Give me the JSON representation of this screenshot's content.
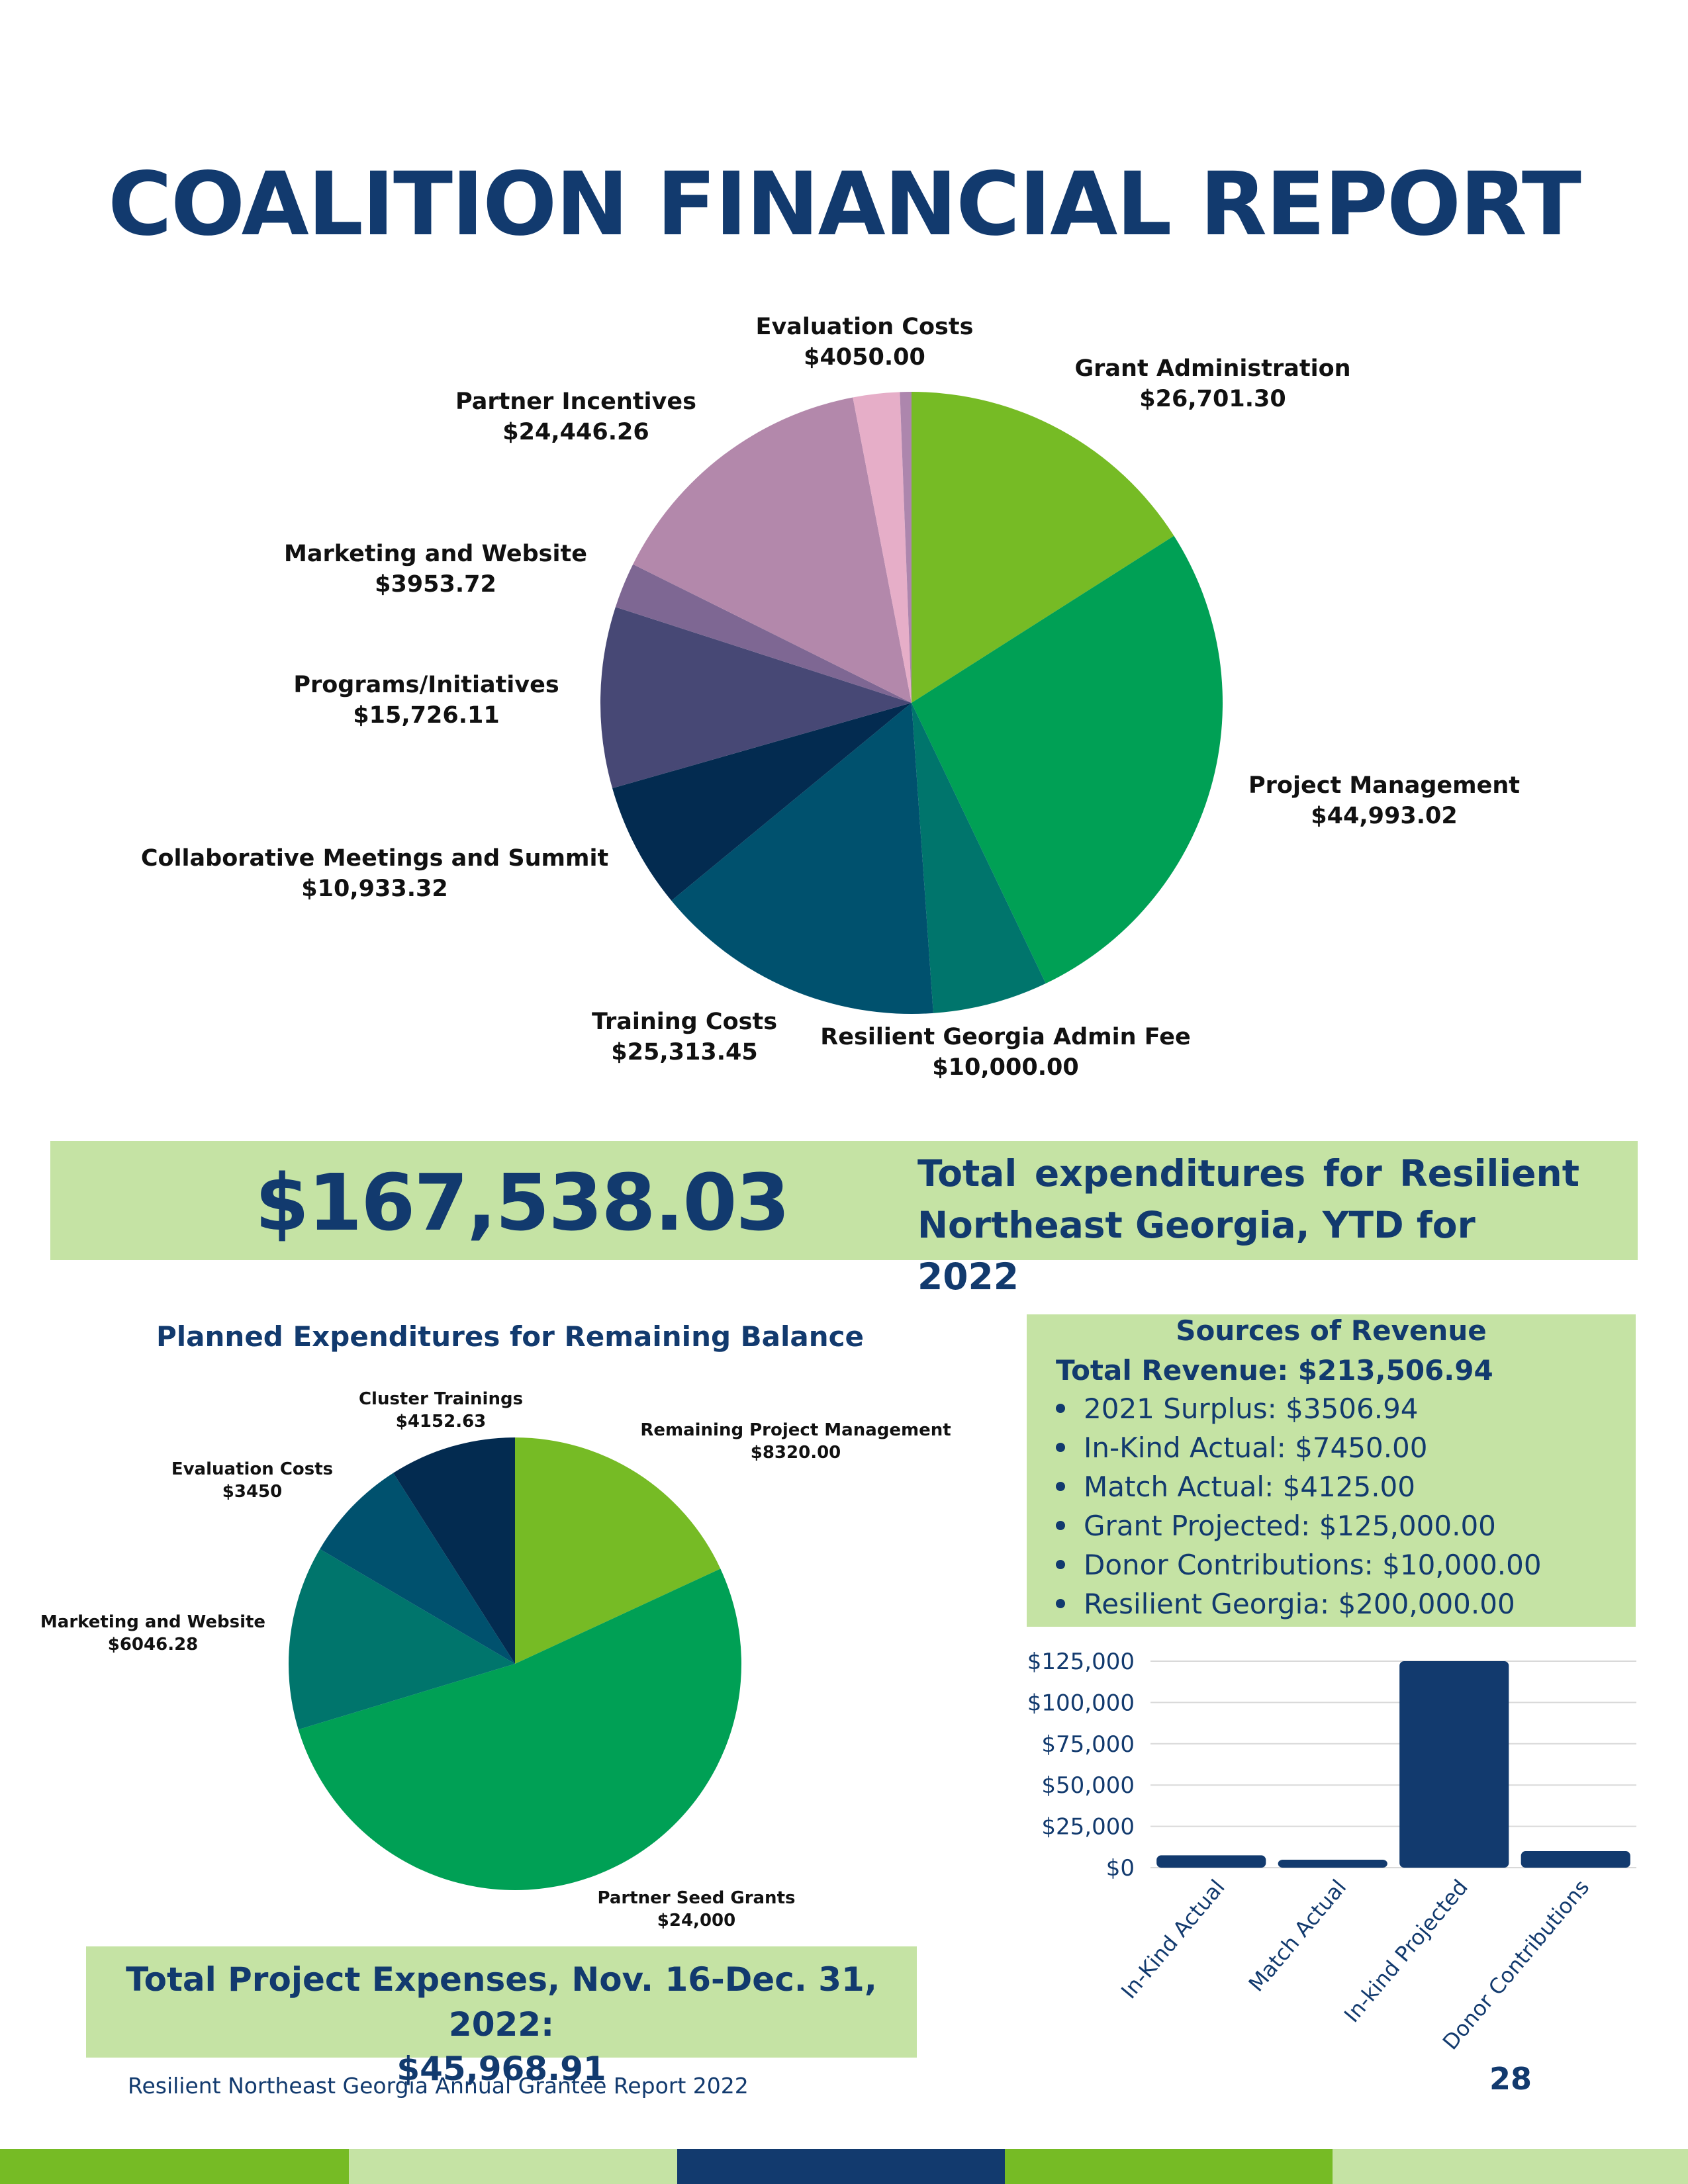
{
  "title": "COALITION FINANCIAL REPORT",
  "total_expenditures": {
    "amount": "$167,538.03",
    "line1": [
      "Total",
      "expenditures",
      "for",
      "Resilient"
    ],
    "line2": "Northeast Georgia, YTD for 2022"
  },
  "planned_title": "Planned Expenditures for Remaining Balance",
  "revenue": {
    "title": "Sources of Revenue",
    "total": "Total Revenue: $213,506.94",
    "items": [
      "2021 Surplus: $3506.94",
      "In-Kind Actual: $7450.00",
      "Match Actual: $4125.00",
      "Grant Projected: $125,000.00",
      "Donor Contributions: $10,000.00",
      "Resilient Georgia: $200,000.00"
    ]
  },
  "project_expenses": {
    "line1": "Total Project Expenses, Nov. 16-Dec. 31, 2022:",
    "line2": "$45,968.91"
  },
  "footer": "Resilient Northeast Georgia Annual Grantee Report 2022",
  "page_number": "28",
  "colors": {
    "navy": "#123a6e",
    "light_green": "#c5e3a4",
    "lime": "#76bb25",
    "green": "#00a055"
  },
  "chart_data": [
    {
      "type": "pie",
      "title": "",
      "slices": [
        {
          "label": "Grant Administration",
          "value_label": "$26,701.30",
          "value": 26701.3,
          "color": "#76bb25"
        },
        {
          "label": "Project Management",
          "value_label": "$44,993.02",
          "value": 44993.02,
          "color": "#00a055"
        },
        {
          "label": "Resilient Georgia Admin Fee",
          "value_label": "$10,000.00",
          "value": 10000.0,
          "color": "#00756c"
        },
        {
          "label": "Training Costs",
          "value_label": "$25,313.45",
          "value": 25313.45,
          "color": "#00516e"
        },
        {
          "label": "Collaborative Meetings and Summit",
          "value_label": "$10,933.32",
          "value": 10933.32,
          "color": "#032b50"
        },
        {
          "label": "Programs/Initiatives",
          "value_label": "$15,726.11",
          "value": 15726.11,
          "color": "#474875"
        },
        {
          "label": "Marketing and Website",
          "value_label": "$3953.72",
          "value": 3953.72,
          "color": "#7e6793"
        },
        {
          "label": "Partner Incentives",
          "value_label": "$24,446.26",
          "value": 24446.26,
          "color": "#b388ab"
        },
        {
          "label": "Evaluation Costs",
          "value_label": "$4050.00",
          "value": 4050.0,
          "color": "#e6aec8"
        },
        {
          "label": "",
          "value_label": "",
          "value": 1000,
          "color": "#ad86ad"
        }
      ]
    },
    {
      "type": "pie",
      "title": "Planned Expenditures for Remaining Balance",
      "slices": [
        {
          "label": "Remaining Project Management",
          "value_label": "$8320.00",
          "value": 8320.0,
          "color": "#76bb25"
        },
        {
          "label": "Partner Seed Grants",
          "value_label": "$24,000",
          "value": 24000,
          "color": "#00a055"
        },
        {
          "label": "Marketing and Website",
          "value_label": "$6046.28",
          "value": 6046.28,
          "color": "#00756c"
        },
        {
          "label": "Evaluation Costs",
          "value_label": "$3450",
          "value": 3450,
          "color": "#00516e"
        },
        {
          "label": "Cluster Trainings",
          "value_label": "$4152.63",
          "value": 4152.63,
          "color": "#032b50"
        }
      ]
    },
    {
      "type": "bar",
      "title": "",
      "categories": [
        "In-Kind Actual",
        "Match Actual",
        "In-kind Projected",
        "Donor Contributions"
      ],
      "values": [
        7450,
        4125,
        125000,
        10000
      ],
      "ylim": [
        0,
        125000
      ],
      "yticks": [
        0,
        25000,
        50000,
        75000,
        100000,
        125000
      ],
      "ytick_labels": [
        "$0",
        "$25,000",
        "$50,000",
        "$75,000",
        "$100,000",
        "$125,000"
      ],
      "grid": true,
      "color": "#123a6e"
    }
  ]
}
